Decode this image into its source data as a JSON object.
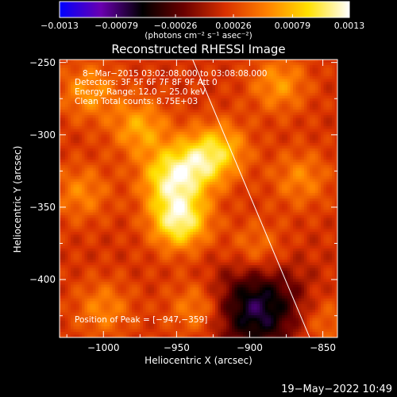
{
  "chart_data": {
    "type": "heatmap",
    "title": "Reconstructed RHESSI Image",
    "xlabel": "Heliocentric X (arcsec)",
    "ylabel": "Heliocentric Y (arcsec)",
    "xlim": [
      -1030,
      -840
    ],
    "ylim": [
      -440,
      -248
    ],
    "x_ticks": [
      -1000,
      -950,
      -900,
      -850
    ],
    "y_ticks": [
      -400,
      -350,
      -300,
      -250
    ],
    "x_tick_labels": [
      "−1000",
      "−950",
      "−900",
      "−850"
    ],
    "y_tick_labels": [
      "−400",
      "−350",
      "−300",
      "−250"
    ],
    "colorbar": {
      "range": [
        -0.0013,
        0.0013
      ],
      "ticks": [
        -0.0013,
        -0.00079,
        -0.00026,
        0.00026,
        0.00079,
        0.0013
      ],
      "tick_labels": [
        "−0.0013",
        "−0.00079",
        "−0.00026",
        "0.00026",
        "0.00079",
        "0.0013"
      ],
      "unit_label": "(photons cm⁻² s⁻¹ asec⁻²)",
      "colormap": [
        "#0000ff",
        "#6a00b0",
        "#000000",
        "#6a0000",
        "#d83000",
        "#ff8000",
        "#ffe000",
        "#ffffff"
      ]
    },
    "sources": [
      {
        "x": -948,
        "y": -359,
        "value": 0.0013
      },
      {
        "x": -955,
        "y": -330,
        "value": 0.001
      },
      {
        "x": -935,
        "y": -320,
        "value": 0.0008
      },
      {
        "x": -975,
        "y": -295,
        "value": 0.0007
      },
      {
        "x": -920,
        "y": -310,
        "value": 0.0007
      },
      {
        "x": -880,
        "y": -265,
        "value": 0.0006
      },
      {
        "x": -895,
        "y": -380,
        "value": 0.0005
      },
      {
        "x": -1010,
        "y": -270,
        "value": 0.0006
      },
      {
        "x": -1015,
        "y": -340,
        "value": 0.0005
      },
      {
        "x": -1000,
        "y": -420,
        "value": 0.0005
      },
      {
        "x": -935,
        "y": -420,
        "value": 0.0006
      },
      {
        "x": -865,
        "y": -330,
        "value": 0.0005
      },
      {
        "x": -850,
        "y": -430,
        "value": 0.0004
      }
    ],
    "negative_region": {
      "x": -895,
      "y": -420,
      "value": -0.0008
    },
    "limb_line": [
      [
        -939,
        -248
      ],
      [
        -859,
        -440
      ]
    ]
  },
  "annotations": {
    "time": "8−Mar−2015 03:02:08.000 to 03:08:08.000",
    "detectors": "Detectors: 3F 5F 6F 7F 8F 9F Att 0",
    "energy": "Energy Range: 12.0 − 25.0 keV",
    "clean": "Clean     Total counts: 8.75E+03",
    "peak": "Position of Peak = [−947,−359]"
  },
  "footer": {
    "timestamp": "19−May−2022 10:49"
  }
}
